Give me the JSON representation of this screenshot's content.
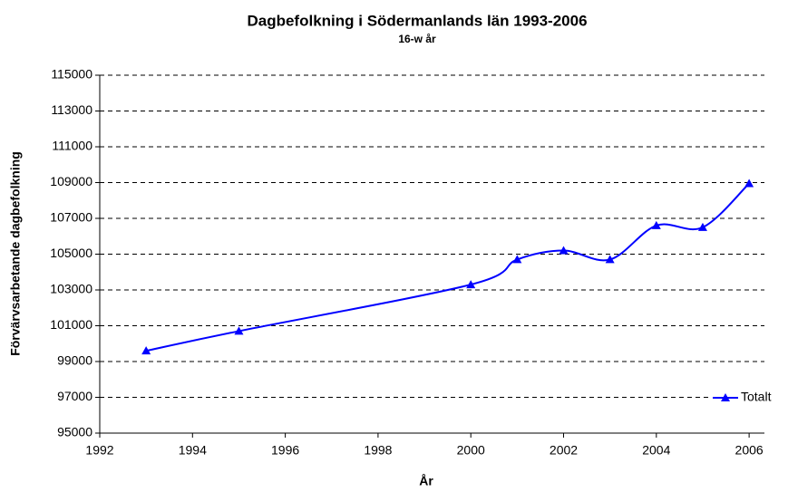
{
  "chart_data": {
    "type": "line",
    "title": "Dagbefolkning i Södermanlands län 1993-2006",
    "subtitle": "16-w år",
    "x_label": "År",
    "y_label": "Förvärvsarbetande dagbefolkning",
    "x": [
      1993,
      1995,
      2000,
      2001,
      2002,
      2003,
      2004,
      2005,
      2006
    ],
    "series": [
      {
        "name": "Totalt",
        "color": "#0000ff",
        "values": [
          99600,
          100700,
          103300,
          104700,
          105200,
          104700,
          106600,
          106500,
          108950
        ]
      }
    ],
    "xlim": [
      1992,
      2006.33
    ],
    "xticks": [
      1992,
      1994,
      1996,
      1998,
      2000,
      2002,
      2004,
      2006
    ],
    "ylim": [
      95000,
      115000
    ],
    "yticks": [
      95000,
      97000,
      99000,
      101000,
      103000,
      105000,
      107000,
      109000,
      111000,
      113000,
      115000
    ],
    "grid": true,
    "legend": "lower right"
  }
}
